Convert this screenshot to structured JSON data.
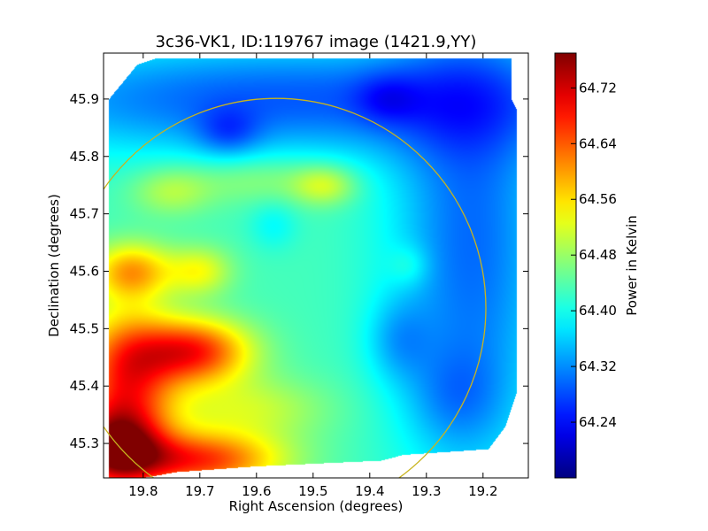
{
  "chart_data": {
    "type": "heatmap",
    "title": "3c36-VK1, ID:119767 image (1421.9,YY)",
    "xlabel": "Right Ascension (degrees)",
    "ylabel": "Declination (degrees)",
    "colorbar_label": "Power in Kelvin",
    "xlim": [
      19.87,
      19.12
    ],
    "ylim": [
      45.24,
      45.98
    ],
    "x_ticks": [
      19.8,
      19.7,
      19.6,
      19.5,
      19.4,
      19.3,
      19.2
    ],
    "x_tick_labels": [
      "19.8",
      "19.7",
      "19.6",
      "19.5",
      "19.4",
      "19.3",
      "19.2"
    ],
    "y_ticks": [
      45.3,
      45.4,
      45.5,
      45.6,
      45.7,
      45.8,
      45.9
    ],
    "y_tick_labels": [
      "45.3",
      "45.4",
      "45.5",
      "45.6",
      "45.7",
      "45.8",
      "45.9"
    ],
    "color_range": [
      64.16,
      64.77
    ],
    "colorbar_ticks": [
      64.24,
      64.32,
      64.4,
      64.48,
      64.56,
      64.64,
      64.72
    ],
    "colorbar_tick_labels": [
      "64.24",
      "64.32",
      "64.40",
      "64.48",
      "64.56",
      "64.64",
      "64.72"
    ],
    "colormap": "jet",
    "grid": false,
    "circle": {
      "center_ra": 19.565,
      "center_dec": 45.536,
      "radius_deg": 0.37,
      "color": "#c8b41e"
    },
    "data_extent": {
      "polygon": [
        [
          19.86,
          45.24
        ],
        [
          19.86,
          45.9
        ],
        [
          19.81,
          45.96
        ],
        [
          19.78,
          45.97
        ],
        [
          19.15,
          45.97
        ],
        [
          19.15,
          45.9
        ],
        [
          19.14,
          45.88
        ],
        [
          19.14,
          45.39
        ],
        [
          19.16,
          45.33
        ],
        [
          19.19,
          45.29
        ],
        [
          19.34,
          45.28
        ],
        [
          19.38,
          45.27
        ],
        [
          19.6,
          45.26
        ],
        [
          19.74,
          45.25
        ],
        [
          19.8,
          45.24
        ]
      ]
    },
    "field": {
      "background": 64.43,
      "components": [
        {
          "ra": 19.85,
          "dec": 45.29,
          "amp": 0.3,
          "sra": 0.06,
          "sdec": 0.05
        },
        {
          "ra": 19.7,
          "dec": 45.27,
          "amp": 0.23,
          "sra": 0.1,
          "sdec": 0.035
        },
        {
          "ra": 19.83,
          "dec": 45.42,
          "amp": 0.23,
          "sra": 0.06,
          "sdec": 0.08
        },
        {
          "ra": 19.71,
          "dec": 45.46,
          "amp": 0.24,
          "sra": 0.07,
          "sdec": 0.04
        },
        {
          "ra": 19.82,
          "dec": 45.6,
          "amp": 0.16,
          "sra": 0.05,
          "sdec": 0.035
        },
        {
          "ra": 19.7,
          "dec": 45.6,
          "amp": 0.1,
          "sra": 0.04,
          "sdec": 0.03
        },
        {
          "ra": 19.62,
          "dec": 45.36,
          "amp": 0.08,
          "sra": 0.1,
          "sdec": 0.04
        },
        {
          "ra": 19.48,
          "dec": 45.75,
          "amp": 0.09,
          "sra": 0.04,
          "sdec": 0.025
        },
        {
          "ra": 19.75,
          "dec": 45.74,
          "amp": 0.07,
          "sra": 0.05,
          "sdec": 0.03
        },
        {
          "ra": 19.6,
          "dec": 45.76,
          "amp": 0.05,
          "sra": 0.08,
          "sdec": 0.03
        },
        {
          "ra": 19.55,
          "dec": 45.9,
          "amp": -0.14,
          "sra": 0.4,
          "sdec": 0.07
        },
        {
          "ra": 19.65,
          "dec": 45.84,
          "amp": -0.07,
          "sra": 0.04,
          "sdec": 0.03
        },
        {
          "ra": 19.37,
          "dec": 45.9,
          "amp": -0.05,
          "sra": 0.04,
          "sdec": 0.03
        },
        {
          "ra": 19.22,
          "dec": 45.65,
          "amp": -0.13,
          "sra": 0.1,
          "sdec": 0.3
        },
        {
          "ra": 19.35,
          "dec": 45.48,
          "amp": -0.06,
          "sra": 0.04,
          "sdec": 0.05
        },
        {
          "ra": 19.25,
          "dec": 45.38,
          "amp": -0.05,
          "sra": 0.06,
          "sdec": 0.06
        },
        {
          "ra": 19.33,
          "dec": 45.61,
          "amp": 0.04,
          "sra": 0.025,
          "sdec": 0.025
        },
        {
          "ra": 19.57,
          "dec": 45.68,
          "amp": -0.04,
          "sra": 0.03,
          "sdec": 0.03
        }
      ]
    }
  }
}
